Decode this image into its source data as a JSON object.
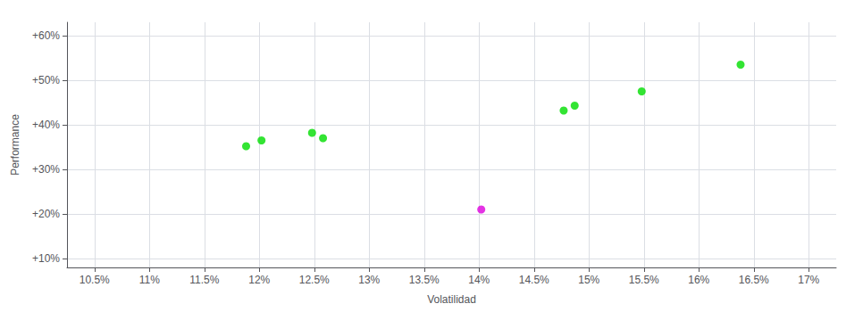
{
  "chart_data": {
    "type": "scatter",
    "xlabel": "Volatilidad",
    "ylabel": "Performance",
    "marker": "circle",
    "grid": true,
    "xlim": [
      10.25,
      17.25
    ],
    "ylim": [
      8,
      63
    ],
    "xticks": [
      {
        "value": 10.5,
        "label": "10.5%"
      },
      {
        "value": 11.0,
        "label": "11%"
      },
      {
        "value": 11.5,
        "label": "11.5%"
      },
      {
        "value": 12.0,
        "label": "12%"
      },
      {
        "value": 12.5,
        "label": "12.5%"
      },
      {
        "value": 13.0,
        "label": "13%"
      },
      {
        "value": 13.5,
        "label": "13.5%"
      },
      {
        "value": 14.0,
        "label": "14%"
      },
      {
        "value": 14.5,
        "label": "14.5%"
      },
      {
        "value": 15.0,
        "label": "15%"
      },
      {
        "value": 15.5,
        "label": "15.5%"
      },
      {
        "value": 16.0,
        "label": "16%"
      },
      {
        "value": 16.5,
        "label": "16.5%"
      },
      {
        "value": 17.0,
        "label": "17%"
      }
    ],
    "yticks": [
      {
        "value": 10,
        "label": "+10%"
      },
      {
        "value": 20,
        "label": "+20%"
      },
      {
        "value": 30,
        "label": "+30%"
      },
      {
        "value": 40,
        "label": "+40%"
      },
      {
        "value": 50,
        "label": "+50%"
      },
      {
        "value": 60,
        "label": "+60%"
      }
    ],
    "series": [
      {
        "color": "#00dd00",
        "x": [
          11.88,
          12.02,
          12.48,
          12.58,
          14.77,
          14.87,
          15.48,
          16.38
        ],
        "values": [
          35.2,
          36.5,
          38.2,
          37.0,
          43.2,
          44.3,
          47.5,
          53.5
        ]
      },
      {
        "color": "#dd00dd",
        "x": [
          14.02
        ],
        "values": [
          21.0
        ]
      }
    ]
  }
}
